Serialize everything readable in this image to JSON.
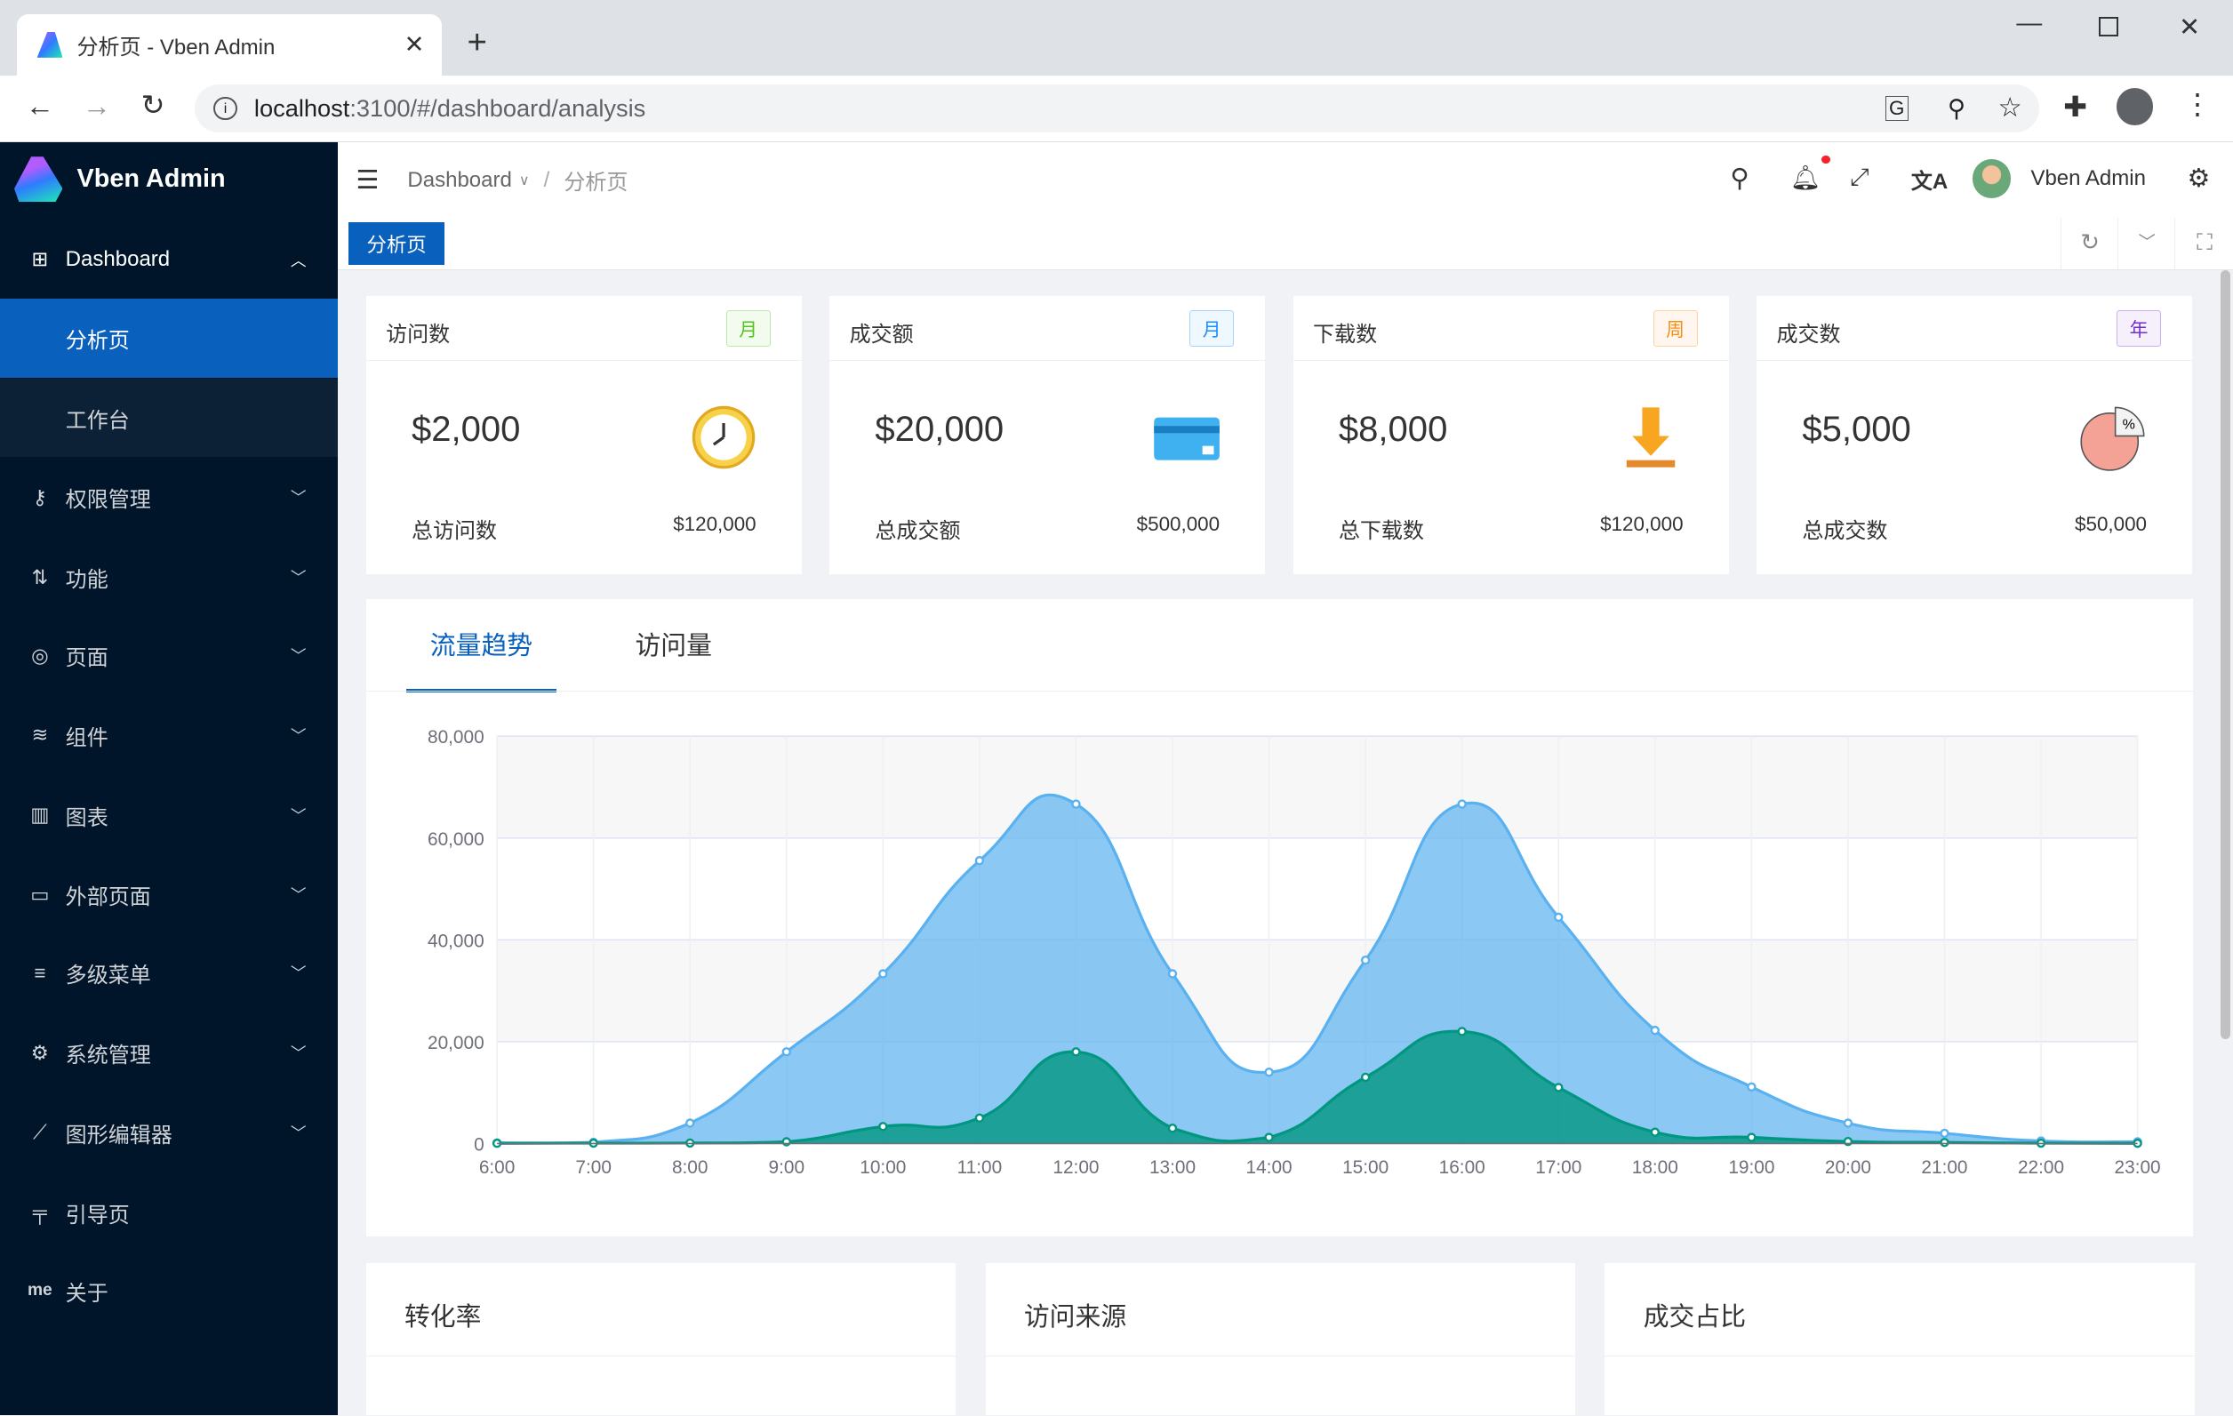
{
  "browser": {
    "tab_title": "分析页 - Vben Admin",
    "url_host": "localhost",
    "url_rest": ":3100/#/dashboard/analysis"
  },
  "app": {
    "name": "Vben Admin"
  },
  "sidebar": {
    "items": [
      {
        "label": "Dashboard",
        "icon": "grid-icon",
        "expanded": true
      },
      {
        "label": "分析页",
        "active": true
      },
      {
        "label": "工作台"
      },
      {
        "label": "权限管理",
        "icon": "key-icon"
      },
      {
        "label": "功能",
        "icon": "function-icon"
      },
      {
        "label": "页面",
        "icon": "page-icon"
      },
      {
        "label": "组件",
        "icon": "layers-icon"
      },
      {
        "label": "图表",
        "icon": "bar-chart-icon"
      },
      {
        "label": "外部页面",
        "icon": "desktop-icon"
      },
      {
        "label": "多级菜单",
        "icon": "menu-icon"
      },
      {
        "label": "系统管理",
        "icon": "gear-icon"
      },
      {
        "label": "图形编辑器",
        "icon": "line-chart-icon"
      },
      {
        "label": "引导页",
        "icon": "paint-roller-icon"
      },
      {
        "label": "关于",
        "icon": "me-icon",
        "icon_text": "me"
      }
    ]
  },
  "header": {
    "breadcrumb": [
      "Dashboard",
      "分析页"
    ],
    "separator": "/",
    "user": "Vben Admin"
  },
  "tabs": {
    "active": "分析页"
  },
  "stats": [
    {
      "title": "访问数",
      "badge": "月",
      "badge_color": "#52c41a",
      "value": "$2,000",
      "total_label": "总访问数",
      "total": "$120,000"
    },
    {
      "title": "成交额",
      "badge": "月",
      "badge_color": "#1890ff",
      "value": "$20,000",
      "total_label": "总成交额",
      "total": "$500,000"
    },
    {
      "title": "下载数",
      "badge": "周",
      "badge_color": "#fa8c16",
      "value": "$8,000",
      "total_label": "总下载数",
      "total": "$120,000"
    },
    {
      "title": "成交数",
      "badge": "年",
      "badge_color": "#722ed1",
      "value": "$5,000",
      "total_label": "总成交数",
      "total": "$50,000"
    }
  ],
  "chart_tabs": [
    "流量趋势",
    "访问量"
  ],
  "chart_data": {
    "type": "area",
    "categories": [
      "6:00",
      "7:00",
      "8:00",
      "9:00",
      "10:00",
      "11:00",
      "12:00",
      "13:00",
      "14:00",
      "15:00",
      "16:00",
      "17:00",
      "18:00",
      "19:00",
      "20:00",
      "21:00",
      "22:00",
      "23:00"
    ],
    "series": [
      {
        "color": "#5ab1ef",
        "values": [
          111,
          222,
          4000,
          18000,
          33333,
          55555,
          66666,
          33333,
          14000,
          36000,
          66666,
          44444,
          22222,
          11111,
          4000,
          2000,
          500,
          333
        ]
      },
      {
        "color": "#019680",
        "values": [
          33,
          66,
          88,
          333,
          3333,
          5000,
          18000,
          3000,
          1200,
          13000,
          22000,
          11000,
          2221,
          1201,
          390,
          198,
          60,
          30
        ]
      }
    ],
    "yticks": [
      "0",
      "20,000",
      "40,000",
      "60,000",
      "80,000"
    ],
    "ylim": [
      0,
      80000
    ],
    "grid": true
  },
  "bottom_cards": [
    "转化率",
    "访问来源",
    "成交占比"
  ]
}
